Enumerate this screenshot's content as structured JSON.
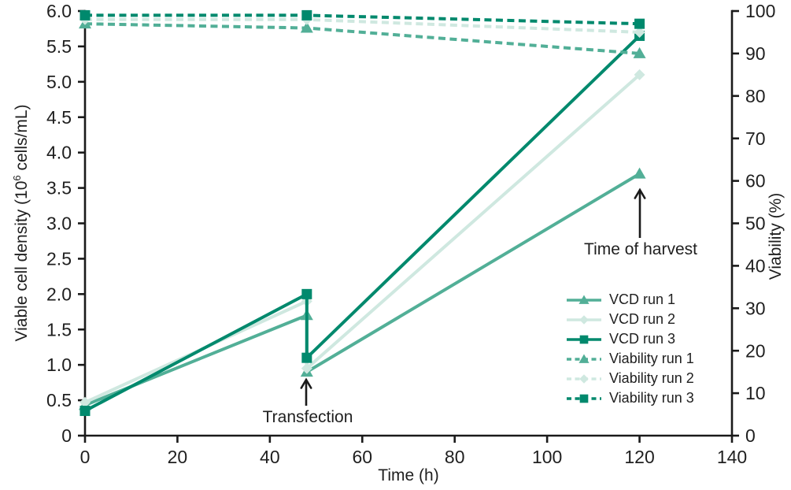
{
  "chart_data": {
    "type": "line",
    "title": "",
    "grid": false,
    "legend_position": "lower right",
    "x_axis": {
      "label": "Time (h)",
      "min": 0,
      "max": 140,
      "tick_values": [
        0,
        20,
        40,
        60,
        80,
        100,
        120,
        140
      ],
      "tick_labels": [
        "0",
        "20",
        "40",
        "60",
        "80",
        "100",
        "120",
        "140"
      ]
    },
    "left_axis": {
      "label_prefix": "Viable cell density (10",
      "label_sup": "6",
      "label_suffix": " cells/mL)",
      "min": 0,
      "max": 6,
      "tick_values": [
        0,
        0.5,
        1.0,
        1.5,
        2.0,
        2.5,
        3.0,
        3.5,
        4.0,
        4.5,
        5.0,
        5.5,
        6.0
      ],
      "tick_labels": [
        "0",
        "0.5",
        "1.0",
        "1.5",
        "2.0",
        "2.5",
        "3.0",
        "3.5",
        "4.0",
        "4.5",
        "5.0",
        "5.5",
        "6.0"
      ]
    },
    "right_axis": {
      "label": "Viability (%)",
      "min": 0,
      "max": 100,
      "tick_values": [
        0,
        10,
        20,
        30,
        40,
        50,
        60,
        70,
        80,
        90,
        100
      ],
      "tick_labels": [
        "0",
        "10",
        "20",
        "30",
        "40",
        "50",
        "60",
        "70",
        "80",
        "90",
        "100"
      ]
    },
    "series": [
      {
        "name": "VCD run 1",
        "axis": "left",
        "style": "solid",
        "marker": "triangle",
        "color": "#52AF97",
        "x": [
          0,
          48,
          48,
          120
        ],
        "y": [
          0.43,
          1.7,
          0.9,
          3.7
        ]
      },
      {
        "name": "VCD run 2",
        "axis": "left",
        "style": "solid",
        "marker": "diamond",
        "color": "#CFE8E0",
        "x": [
          0,
          48,
          48,
          120
        ],
        "y": [
          0.47,
          1.9,
          0.95,
          5.1
        ]
      },
      {
        "name": "VCD run 3",
        "axis": "left",
        "style": "solid",
        "marker": "square",
        "color": "#00896D",
        "x": [
          0,
          48,
          48,
          120
        ],
        "y": [
          0.35,
          2.0,
          1.1,
          5.65
        ]
      },
      {
        "name": "Viability run 1",
        "axis": "right",
        "style": "dashed",
        "marker": "triangle",
        "color": "#52AF97",
        "x": [
          0,
          48,
          120
        ],
        "y": [
          97,
          96,
          90
        ]
      },
      {
        "name": "Viability run 2",
        "axis": "right",
        "style": "dashed",
        "marker": "diamond",
        "color": "#CFE8E0",
        "x": [
          0,
          48,
          120
        ],
        "y": [
          98,
          98,
          95
        ]
      },
      {
        "name": "Viability run 3",
        "axis": "right",
        "style": "dashed",
        "marker": "square",
        "color": "#00896D",
        "x": [
          0,
          48,
          120
        ],
        "y": [
          99,
          99,
          97
        ]
      }
    ],
    "annotations": [
      {
        "text": "Transfection",
        "x": 48
      },
      {
        "text": "Time of harvest",
        "x": 120
      }
    ],
    "colors": {
      "run1": "#52AF97",
      "run2": "#CFE8E0",
      "run3": "#00896D",
      "axis": "#1A1A1A"
    }
  }
}
